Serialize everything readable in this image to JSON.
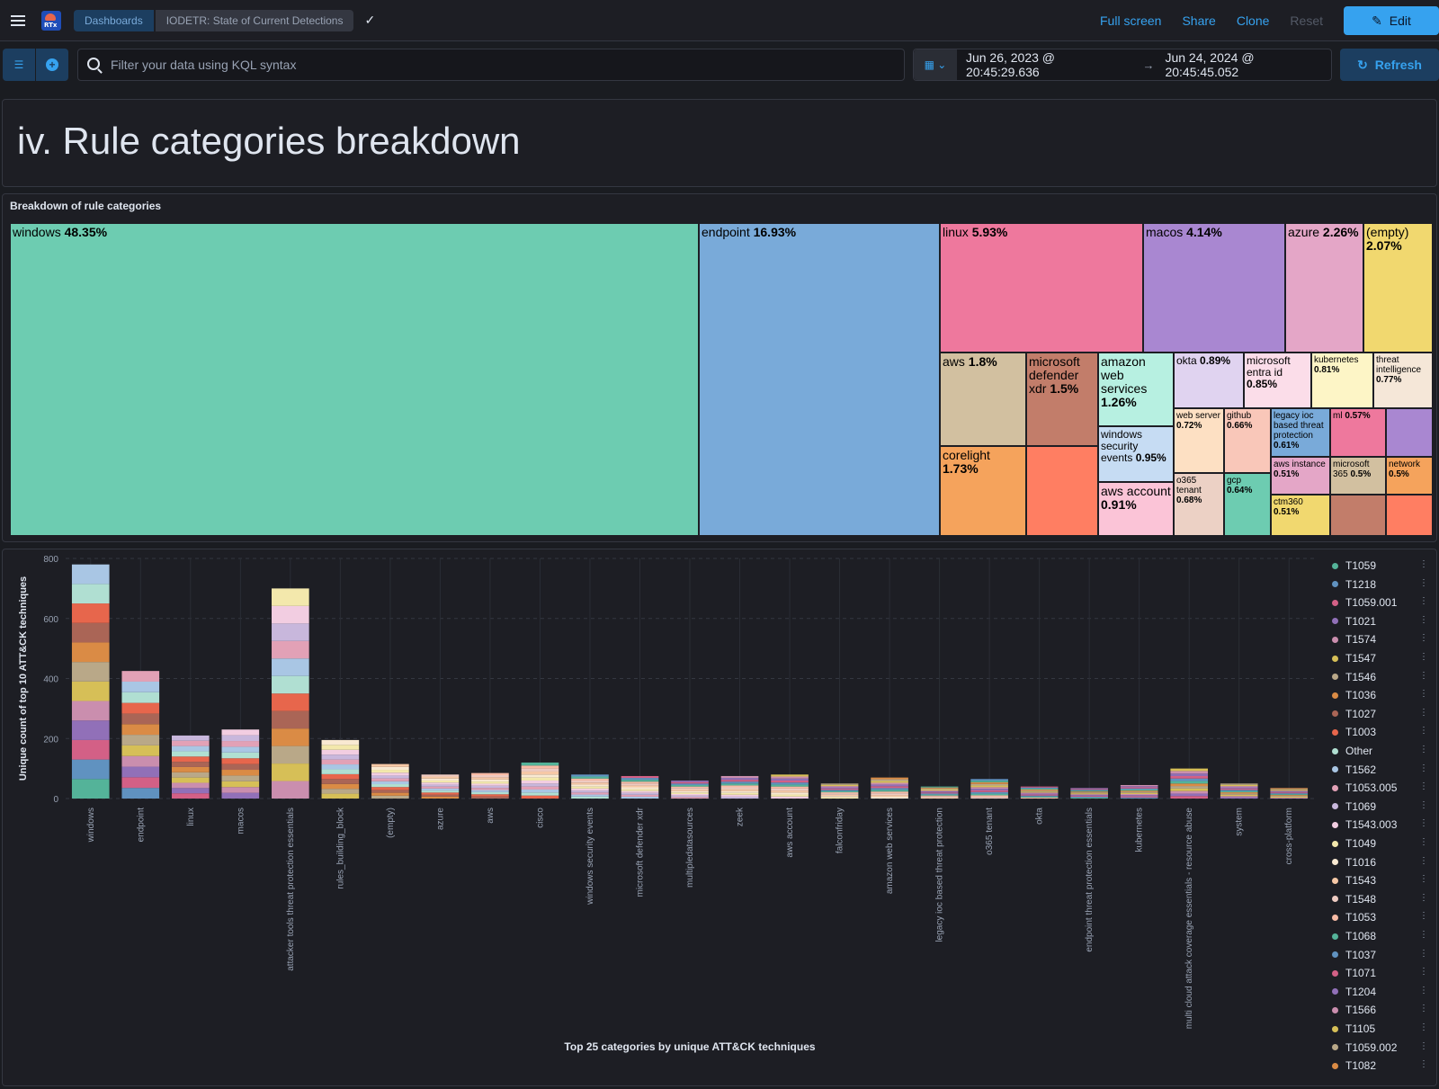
{
  "breadcrumbs": [
    "Dashboards",
    "IODETR: State of Current Detections"
  ],
  "actions": {
    "full_screen": "Full screen",
    "share": "Share",
    "clone": "Clone",
    "reset": "Reset",
    "edit": "Edit"
  },
  "query": {
    "placeholder": "Filter your data using KQL syntax"
  },
  "dates": {
    "start": "Jun 26, 2023 @ 20:45:29.636",
    "end": "Jun 24, 2024 @ 20:45:45.052",
    "refresh": "Refresh"
  },
  "section_heading": "iv. Rule categories breakdown",
  "treemap": {
    "title": "Breakdown of rule categories",
    "items": [
      {
        "label": "windows",
        "pct": "48.35%",
        "color": "#6dccb1"
      },
      {
        "label": "endpoint",
        "pct": "16.93%",
        "color": "#79aad9"
      },
      {
        "label": "linux",
        "pct": "5.93%",
        "color": "#ee789d"
      },
      {
        "label": "macos",
        "pct": "4.14%",
        "color": "#a987d1"
      },
      {
        "label": "azure",
        "pct": "2.26%",
        "color": "#e4a6c7"
      },
      {
        "label": "(empty)",
        "pct": "2.07%",
        "color": "#f1d86f"
      },
      {
        "label": "aws",
        "pct": "1.8%",
        "color": "#d2c0a0"
      },
      {
        "label": "microsoft defender xdr",
        "pct": "1.5%",
        "color": "#c27d6a"
      },
      {
        "label": "amazon web services",
        "pct": "1.26%",
        "color": "#b7f0e1"
      },
      {
        "label": "corelight",
        "pct": "1.73%",
        "color": "#f5a35c"
      },
      {
        "label": "windows security events",
        "pct": "0.95%",
        "color": "#c6dcf3"
      },
      {
        "label": "aws account",
        "pct": "0.91%",
        "color": "#fbc4d7"
      },
      {
        "label": "okta",
        "pct": "0.89%",
        "color": "#e0d3f0"
      },
      {
        "label": "microsoft entra id",
        "pct": "0.85%",
        "color": "#fbdde9"
      },
      {
        "label": "kubernetes",
        "pct": "0.81%",
        "color": "#fdf5c6"
      },
      {
        "label": "threat intelligence",
        "pct": "0.77%",
        "color": "#f5e7d8"
      },
      {
        "label": "web server",
        "pct": "0.72%",
        "color": "#fde0c3"
      },
      {
        "label": "github",
        "pct": "0.66%",
        "color": "#f9c7b9"
      },
      {
        "label": "legacy ioc based threat protection",
        "pct": "0.61%",
        "color": "#79aad9"
      },
      {
        "label": "ml",
        "pct": "0.57%",
        "color": "#ee789d"
      },
      {
        "label": "o365 tenant",
        "pct": "0.68%",
        "color": "#ecd1c5"
      },
      {
        "label": "gcp",
        "pct": "0.64%",
        "color": "#6dccb1"
      },
      {
        "label": "aws instance",
        "pct": "0.51%",
        "color": "#e4a6c7"
      },
      {
        "label": "microsoft 365",
        "pct": "0.5%",
        "color": "#d2c0a0"
      },
      {
        "label": "network",
        "pct": "0.5%",
        "color": "#f5a35c"
      },
      {
        "label": "ctm360",
        "pct": "0.51%",
        "color": "#f1d86f"
      }
    ],
    "unlabeled_colors": [
      "#ff7e62",
      "#a987d1",
      "#c27d6a",
      "#ff7e62"
    ]
  },
  "chart_data": {
    "type": "bar",
    "stacked": true,
    "title": "Top 25 categories by unique ATT&CK techniques",
    "ylabel": "Unique count of top 10 ATT&CK techniques",
    "xlabel": "Top 25 categories by unique ATT&CK techniques",
    "ylim": [
      0,
      800
    ],
    "yticks": [
      0,
      200,
      400,
      600,
      800
    ],
    "categories": [
      "windows",
      "endpoint",
      "linux",
      "macos",
      "attacker tools threat protection essentials",
      "rules_building_block",
      "(empty)",
      "azure",
      "aws",
      "cisco",
      "windows security events",
      "microsoft defender xdr",
      "multipledatasources",
      "zeek",
      "aws account",
      "falconfriday",
      "amazon web services",
      "legacy ioc based threat protection",
      "o365 tenant",
      "okta",
      "endpoint threat protection essentials",
      "kubernetes",
      "multi cloud attack coverage essentials - resource abuse",
      "system",
      "cross-platform"
    ],
    "totals": [
      780,
      425,
      210,
      230,
      700,
      195,
      115,
      80,
      85,
      120,
      80,
      75,
      60,
      75,
      80,
      50,
      70,
      40,
      65,
      40,
      35,
      45,
      100,
      50,
      35
    ],
    "legend": [
      "T1059",
      "T1218",
      "T1059.001",
      "T1021",
      "T1574",
      "T1547",
      "T1546",
      "T1036",
      "T1027",
      "T1003",
      "Other",
      "T1562",
      "T1053.005",
      "T1069",
      "T1543.003",
      "T1049",
      "T1016",
      "T1543",
      "T1548",
      "T1053",
      "T1068",
      "T1037",
      "T1071",
      "T1204",
      "T1566",
      "T1105",
      "T1059.002",
      "T1082"
    ],
    "legend_colors": [
      "#54b399",
      "#6092c0",
      "#d36086",
      "#9170b8",
      "#ca8eae",
      "#d6bf57",
      "#b9a888",
      "#da8b45",
      "#aa6556",
      "#e7664c",
      "#b0dfd2",
      "#a9c6e4",
      "#e2a1b6",
      "#c8b7dc",
      "#f2cde1",
      "#f3e8ac",
      "#f9e9d2",
      "#f6c8a6",
      "#eecbc2",
      "#f8bba5",
      "#54b399",
      "#6092c0",
      "#d36086",
      "#9170b8",
      "#ca8eae",
      "#d6bf57",
      "#b9a888",
      "#da8b45"
    ]
  }
}
